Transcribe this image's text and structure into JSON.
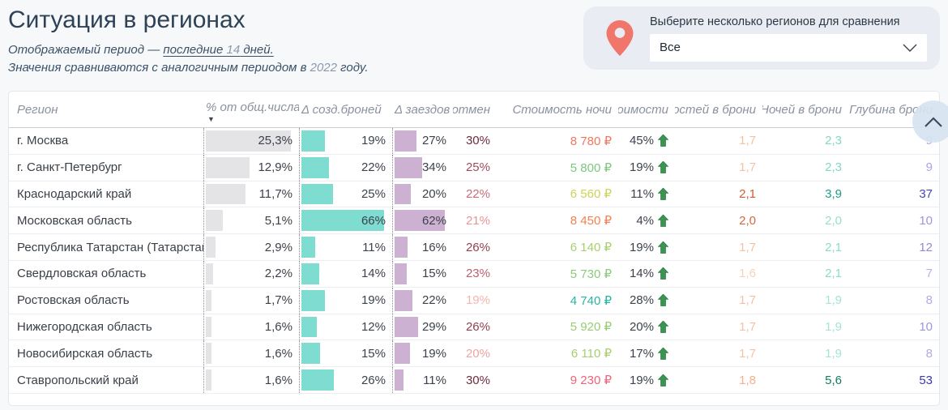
{
  "header": {
    "title": "Ситуация в регионах",
    "period_prefix": "Отображаемый период — ",
    "period_link_text": "последние ",
    "period_value": "14",
    "period_suffix": " дней.",
    "compare_prefix": "Значения сравниваются с аналогичным периодом в ",
    "compare_value": "2022",
    "compare_suffix": " году."
  },
  "selector": {
    "label": "Выберите несколько регионов для сравнения",
    "value": "Все",
    "pin_color": "#f0756b"
  },
  "table": {
    "columns": [
      "Регион",
      "% от общ.числа",
      "Δ созд.броней",
      "Δ заездов",
      "% отмен",
      "Стоимость ночи",
      "Δ стоимости",
      "Гостей в брони",
      "Ночей в брони",
      "Глубина брони"
    ],
    "sort": {
      "column": "% от общ.числа",
      "direction": "desc",
      "glyph": "▼"
    },
    "bar_max": {
      "share": 25.3,
      "created": 66,
      "checkins": 62
    },
    "bar_colors": {
      "share": "#e4e4e6",
      "created": "#7edcd0",
      "checkins": "#ccb1d2"
    },
    "arrow_up_color": "#3a9552",
    "rows": [
      {
        "region": "г. Москва",
        "share": "25,3%",
        "share_val": 25.3,
        "created": "19%",
        "created_val": 19,
        "checkins": "27%",
        "checkins_val": 27,
        "cancel": "30%",
        "cancel_color": "#6d2b3c",
        "price": "8 780 ₽",
        "price_color": "#f4775d",
        "delta": "45%",
        "delta_up": true,
        "guests": "1,7",
        "guests_color": "#f5c1a4",
        "nights": "2,3",
        "nights_color": "#84d6c7",
        "depth": "9",
        "depth_color": "#a8a5e3"
      },
      {
        "region": "г. Санкт-Петербург",
        "share": "12,9%",
        "share_val": 12.9,
        "created": "22%",
        "created_val": 22,
        "checkins": "34%",
        "checkins_val": 34,
        "cancel": "25%",
        "cancel_color": "#a04b5e",
        "price": "5 800 ₽",
        "price_color": "#7cc87f",
        "delta": "19%",
        "delta_up": true,
        "guests": "1,7",
        "guests_color": "#f5c1a4",
        "nights": "2,3",
        "nights_color": "#84d6c7",
        "depth": "9",
        "depth_color": "#a8a5e3"
      },
      {
        "region": "Краснодарский край",
        "share": "11,7%",
        "share_val": 11.7,
        "created": "25%",
        "created_val": 25,
        "checkins": "20%",
        "checkins_val": 20,
        "cancel": "22%",
        "cancel_color": "#c76f79",
        "price": "6 560 ₽",
        "price_color": "#ccd356",
        "delta": "11%",
        "delta_up": true,
        "guests": "2,1",
        "guests_color": "#cd5c38",
        "nights": "3,9",
        "nights_color": "#1e9c8b",
        "depth": "37",
        "depth_color": "#4645ac"
      },
      {
        "region": "Московская область",
        "share": "5,1%",
        "share_val": 5.1,
        "created": "66%",
        "created_val": 66,
        "checkins": "62%",
        "checkins_val": 62,
        "cancel": "21%",
        "cancel_color": "#e79694",
        "price": "8 450 ₽",
        "price_color": "#f5814f",
        "delta": "4%",
        "delta_up": true,
        "guests": "2,0",
        "guests_color": "#d4683f",
        "nights": "2,0",
        "nights_color": "#98ded0",
        "depth": "10",
        "depth_color": "#9b97de"
      },
      {
        "region": "Республика Татарстан (Татарстан)",
        "share": "2,9%",
        "share_val": 2.9,
        "created": "11%",
        "created_val": 11,
        "checkins": "16%",
        "checkins_val": 16,
        "cancel": "26%",
        "cancel_color": "#91404f",
        "price": "6 140 ₽",
        "price_color": "#a8d06c",
        "delta": "19%",
        "delta_up": true,
        "guests": "1,7",
        "guests_color": "#f5c1a4",
        "nights": "2,1",
        "nights_color": "#8edacc",
        "depth": "12",
        "depth_color": "#8e8ad8"
      },
      {
        "region": "Свердловская область",
        "share": "2,2%",
        "share_val": 2.2,
        "created": "14%",
        "created_val": 14,
        "checkins": "15%",
        "checkins_val": 15,
        "cancel": "23%",
        "cancel_color": "#bb6070",
        "price": "5 730 ₽",
        "price_color": "#8aca79",
        "delta": "14%",
        "delta_up": true,
        "guests": "1,6",
        "guests_color": "#f8d2b8",
        "nights": "2,1",
        "nights_color": "#8edacc",
        "depth": "7",
        "depth_color": "#b6b3e8"
      },
      {
        "region": "Ростовская область",
        "share": "1,7%",
        "share_val": 1.7,
        "created": "19%",
        "created_val": 19,
        "checkins": "22%",
        "checkins_val": 22,
        "cancel": "19%",
        "cancel_color": "#f5b5ae",
        "price": "4 740 ₽",
        "price_color": "#28b4a4",
        "delta": "28%",
        "delta_up": true,
        "guests": "1,7",
        "guests_color": "#f5c1a4",
        "nights": "1,9",
        "nights_color": "#a6e3d7",
        "depth": "8",
        "depth_color": "#afabe5"
      },
      {
        "region": "Нижегородская область",
        "share": "1,6%",
        "share_val": 1.6,
        "created": "12%",
        "created_val": 12,
        "checkins": "29%",
        "checkins_val": 29,
        "cancel": "26%",
        "cancel_color": "#91404f",
        "price": "5 920 ₽",
        "price_color": "#97cd73",
        "delta": "20%",
        "delta_up": true,
        "guests": "1,7",
        "guests_color": "#f5c1a4",
        "nights": "1,9",
        "nights_color": "#a6e3d7",
        "depth": "10",
        "depth_color": "#9b97de"
      },
      {
        "region": "Новосибирская область",
        "share": "1,6%",
        "share_val": 1.6,
        "created": "15%",
        "created_val": 15,
        "checkins": "19%",
        "checkins_val": 19,
        "cancel": "20%",
        "cancel_color": "#efa3a1",
        "price": "6 110 ₽",
        "price_color": "#a6cf6e",
        "delta": "17%",
        "delta_up": true,
        "guests": "1,7",
        "guests_color": "#f5c1a4",
        "nights": "1,9",
        "nights_color": "#a6e3d7",
        "depth": "8",
        "depth_color": "#afabe5"
      },
      {
        "region": "Ставропольский край",
        "share": "1,6%",
        "share_val": 1.6,
        "created": "26%",
        "created_val": 26,
        "checkins": "11%",
        "checkins_val": 11,
        "cancel": "30%",
        "cancel_color": "#6d2b3c",
        "price": "9 230 ₽",
        "price_color": "#f26479",
        "delta": "19%",
        "delta_up": true,
        "guests": "1,8",
        "guests_color": "#f2b08c",
        "nights": "5,6",
        "nights_color": "#157c62",
        "depth": "53",
        "depth_color": "#3939a4"
      }
    ]
  }
}
